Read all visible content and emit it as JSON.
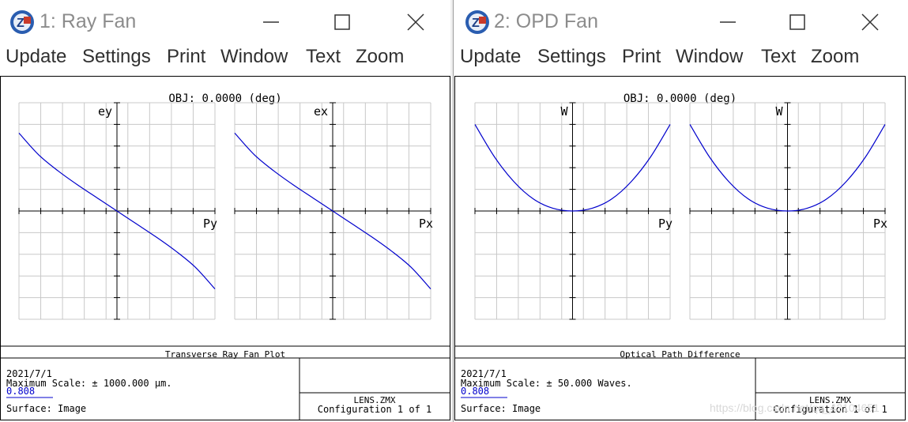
{
  "colors": {
    "curve": "#0000cc",
    "grid": "#c8c8c8",
    "axis": "#000000",
    "border": "#000000",
    "title_text": "#8c8c8c",
    "menu_text": "#303030"
  },
  "windows": [
    {
      "id": "ray-fan",
      "title": "1: Ray Fan",
      "icon": "zemax-app-icon",
      "controls": [
        "minimize-icon",
        "maximize-icon",
        "close-icon"
      ],
      "menu": [
        "Update",
        "Settings",
        "Print",
        "Window",
        "Text",
        "Zoom"
      ],
      "field_label": "OBJ: 0.0000 (deg)",
      "plots": [
        {
          "y_label": "ey",
          "x_label": "Py"
        },
        {
          "y_label": "ex",
          "x_label": "Px"
        }
      ],
      "footer": {
        "plot_title": "Transverse Ray Fan Plot",
        "date": "2021/7/1",
        "max_scale": "Maximum Scale: ± 1000.000 µm.",
        "wavelength": "0.808",
        "surface": "Surface: Image",
        "file": "LENS.ZMX",
        "configuration": "Configuration 1 of 1"
      },
      "chart_data": {
        "type": "line",
        "series_note": "",
        "x_range": [
          -1,
          1
        ],
        "y_range": [
          -1,
          1
        ],
        "grid": true,
        "panels": [
          {
            "name": "ey vs Py",
            "x": [
              -1,
              -0.8,
              -0.6,
              -0.4,
              -0.2,
              0,
              0.2,
              0.4,
              0.6,
              0.8,
              1
            ],
            "y": [
              0.72,
              0.52,
              0.37,
              0.24,
              0.12,
              0,
              -0.12,
              -0.24,
              -0.37,
              -0.52,
              -0.72
            ]
          },
          {
            "name": "ex vs Px",
            "x": [
              -1,
              -0.8,
              -0.6,
              -0.4,
              -0.2,
              0,
              0.2,
              0.4,
              0.6,
              0.8,
              1
            ],
            "y": [
              0.72,
              0.52,
              0.37,
              0.24,
              0.12,
              0,
              -0.12,
              -0.24,
              -0.37,
              -0.52,
              -0.72
            ]
          }
        ]
      }
    },
    {
      "id": "opd-fan",
      "title": "2: OPD Fan",
      "icon": "zemax-app-icon",
      "controls": [
        "minimize-icon",
        "maximize-icon",
        "close-icon"
      ],
      "menu": [
        "Update",
        "Settings",
        "Print",
        "Window",
        "Text",
        "Zoom"
      ],
      "field_label": "OBJ: 0.0000 (deg)",
      "plots": [
        {
          "y_label": "W",
          "x_label": "Py"
        },
        {
          "y_label": "W",
          "x_label": "Px"
        }
      ],
      "footer": {
        "plot_title": "Optical Path Difference",
        "date": "2021/7/1",
        "max_scale": "Maximum Scale: ± 50.000 Waves.",
        "wavelength": "0.808",
        "surface": "Surface: Image",
        "file": "LENS.ZMX",
        "configuration": "Configuration 1 of 1"
      },
      "chart_data": {
        "type": "line",
        "x_range": [
          -1,
          1
        ],
        "y_range": [
          -1,
          1
        ],
        "grid": true,
        "panels": [
          {
            "name": "W vs Py",
            "x": [
              -1,
              -0.8,
              -0.6,
              -0.4,
              -0.2,
              0,
              0.2,
              0.4,
              0.6,
              0.8,
              1
            ],
            "y": [
              0.8,
              0.5,
              0.27,
              0.11,
              0.025,
              0,
              0.025,
              0.11,
              0.27,
              0.5,
              0.8
            ]
          },
          {
            "name": "W vs Px",
            "x": [
              -1,
              -0.8,
              -0.6,
              -0.4,
              -0.2,
              0,
              0.2,
              0.4,
              0.6,
              0.8,
              1
            ],
            "y": [
              0.8,
              0.5,
              0.27,
              0.11,
              0.025,
              0,
              0.025,
              0.11,
              0.27,
              0.5,
              0.8
            ]
          }
        ]
      }
    }
  ],
  "watermark": "https://blog.csdn.net/qq_43104651"
}
